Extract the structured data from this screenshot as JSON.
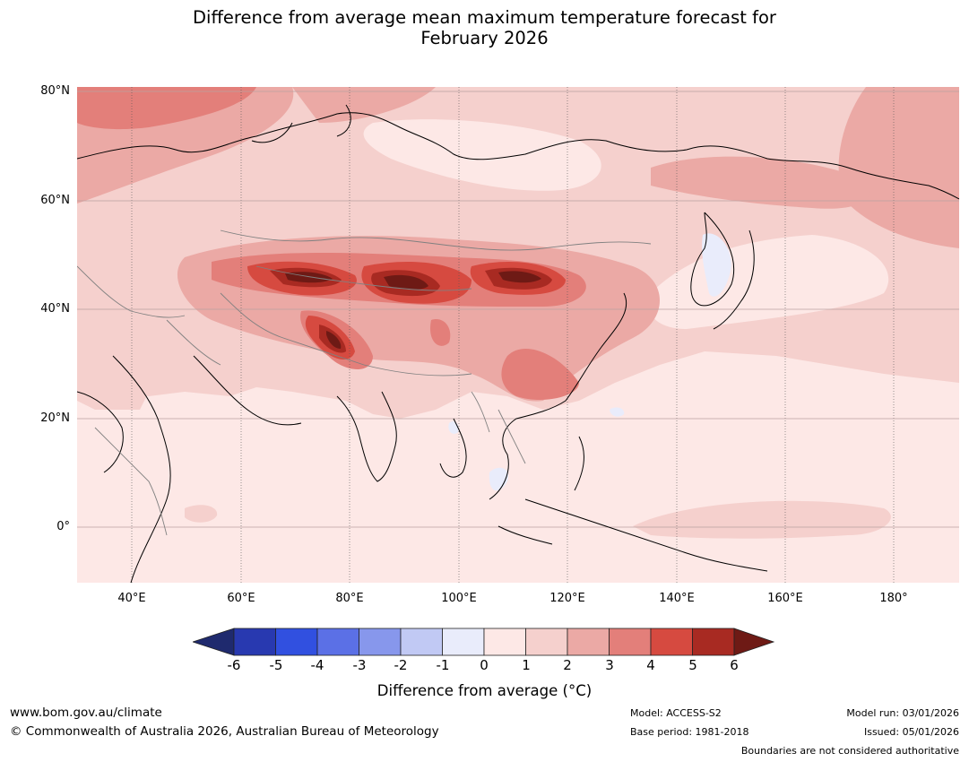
{
  "title_line1": "Difference from average mean maximum temperature forecast for",
  "title_line2": "February 2026",
  "lat_labels": [
    "80°N",
    "60°N",
    "40°N",
    "20°N",
    "0°"
  ],
  "lon_labels": [
    "40°E",
    "60°E",
    "80°E",
    "100°E",
    "120°E",
    "140°E",
    "160°E",
    "180°"
  ],
  "colorbar": {
    "ticks": [
      "-6",
      "-5",
      "-4",
      "-3",
      "-2",
      "-1",
      "0",
      "1",
      "2",
      "3",
      "4",
      "5",
      "6"
    ],
    "label": "Difference from average (°C)",
    "colors": [
      "#1f2a6e",
      "#2839b0",
      "#3150e0",
      "#5b70e6",
      "#8797ec",
      "#c1c9f4",
      "#e9ecfb",
      "#fde8e6",
      "#f5d0cd",
      "#eba9a5",
      "#e37f7a",
      "#d64a40",
      "#a82a22",
      "#6e1a15"
    ]
  },
  "footer": {
    "website": "www.bom.gov.au/climate",
    "copyright": "© Commonwealth of Australia 2026, Australian Bureau of Meteorology",
    "model": "Model: ACCESS-S2",
    "base_period": "Base period: 1981-2018",
    "model_run": "Model run: 03/01/2026",
    "issued": "Issued: 05/01/2026",
    "disclaimer": "Boundaries are not considered authoritative"
  }
}
